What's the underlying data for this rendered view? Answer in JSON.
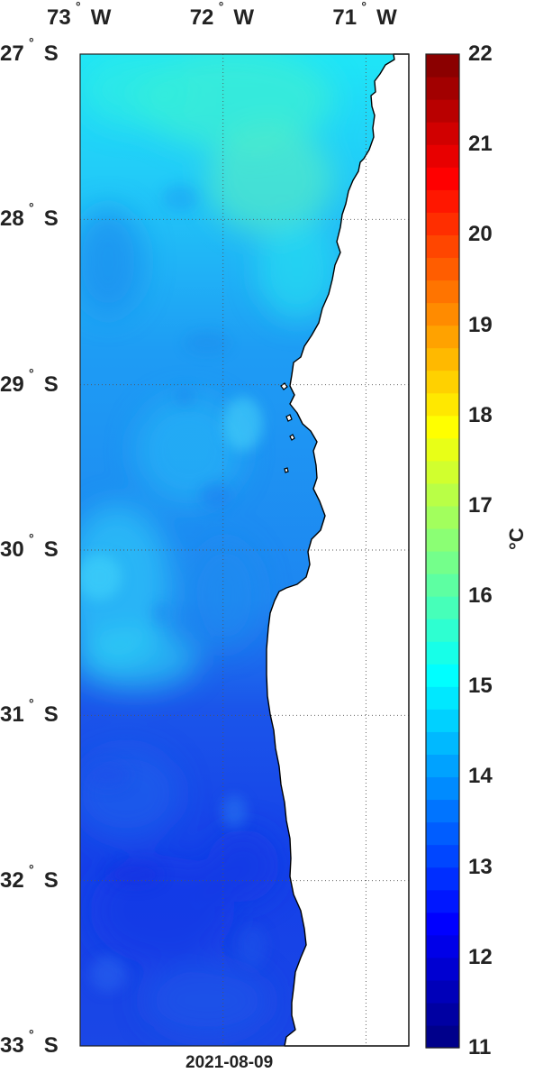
{
  "map": {
    "date": "2021-08-09",
    "lon_labels": [
      {
        "deg": "73",
        "hem": "W"
      },
      {
        "deg": "72",
        "hem": "W"
      },
      {
        "deg": "71",
        "hem": "W"
      }
    ],
    "lat_labels": [
      {
        "deg": "27",
        "hem": "S"
      },
      {
        "deg": "28",
        "hem": "S"
      },
      {
        "deg": "29",
        "hem": "S"
      },
      {
        "deg": "30",
        "hem": "S"
      },
      {
        "deg": "31",
        "hem": "S"
      },
      {
        "deg": "32",
        "hem": "S"
      },
      {
        "deg": "33",
        "hem": "S"
      }
    ],
    "lon_range": [
      -73.0,
      -70.7
    ],
    "lat_range": [
      -33.0,
      -27.0
    ],
    "grid": true,
    "land_color": "#ffffff",
    "coast_color": "#000000"
  },
  "colorbar": {
    "min": 11,
    "max": 22,
    "ticks": [
      "22",
      "21",
      "20",
      "19",
      "18",
      "17",
      "16",
      "15",
      "14",
      "13",
      "12",
      "11"
    ],
    "unit_label": "°C",
    "colormap": "jet"
  }
}
